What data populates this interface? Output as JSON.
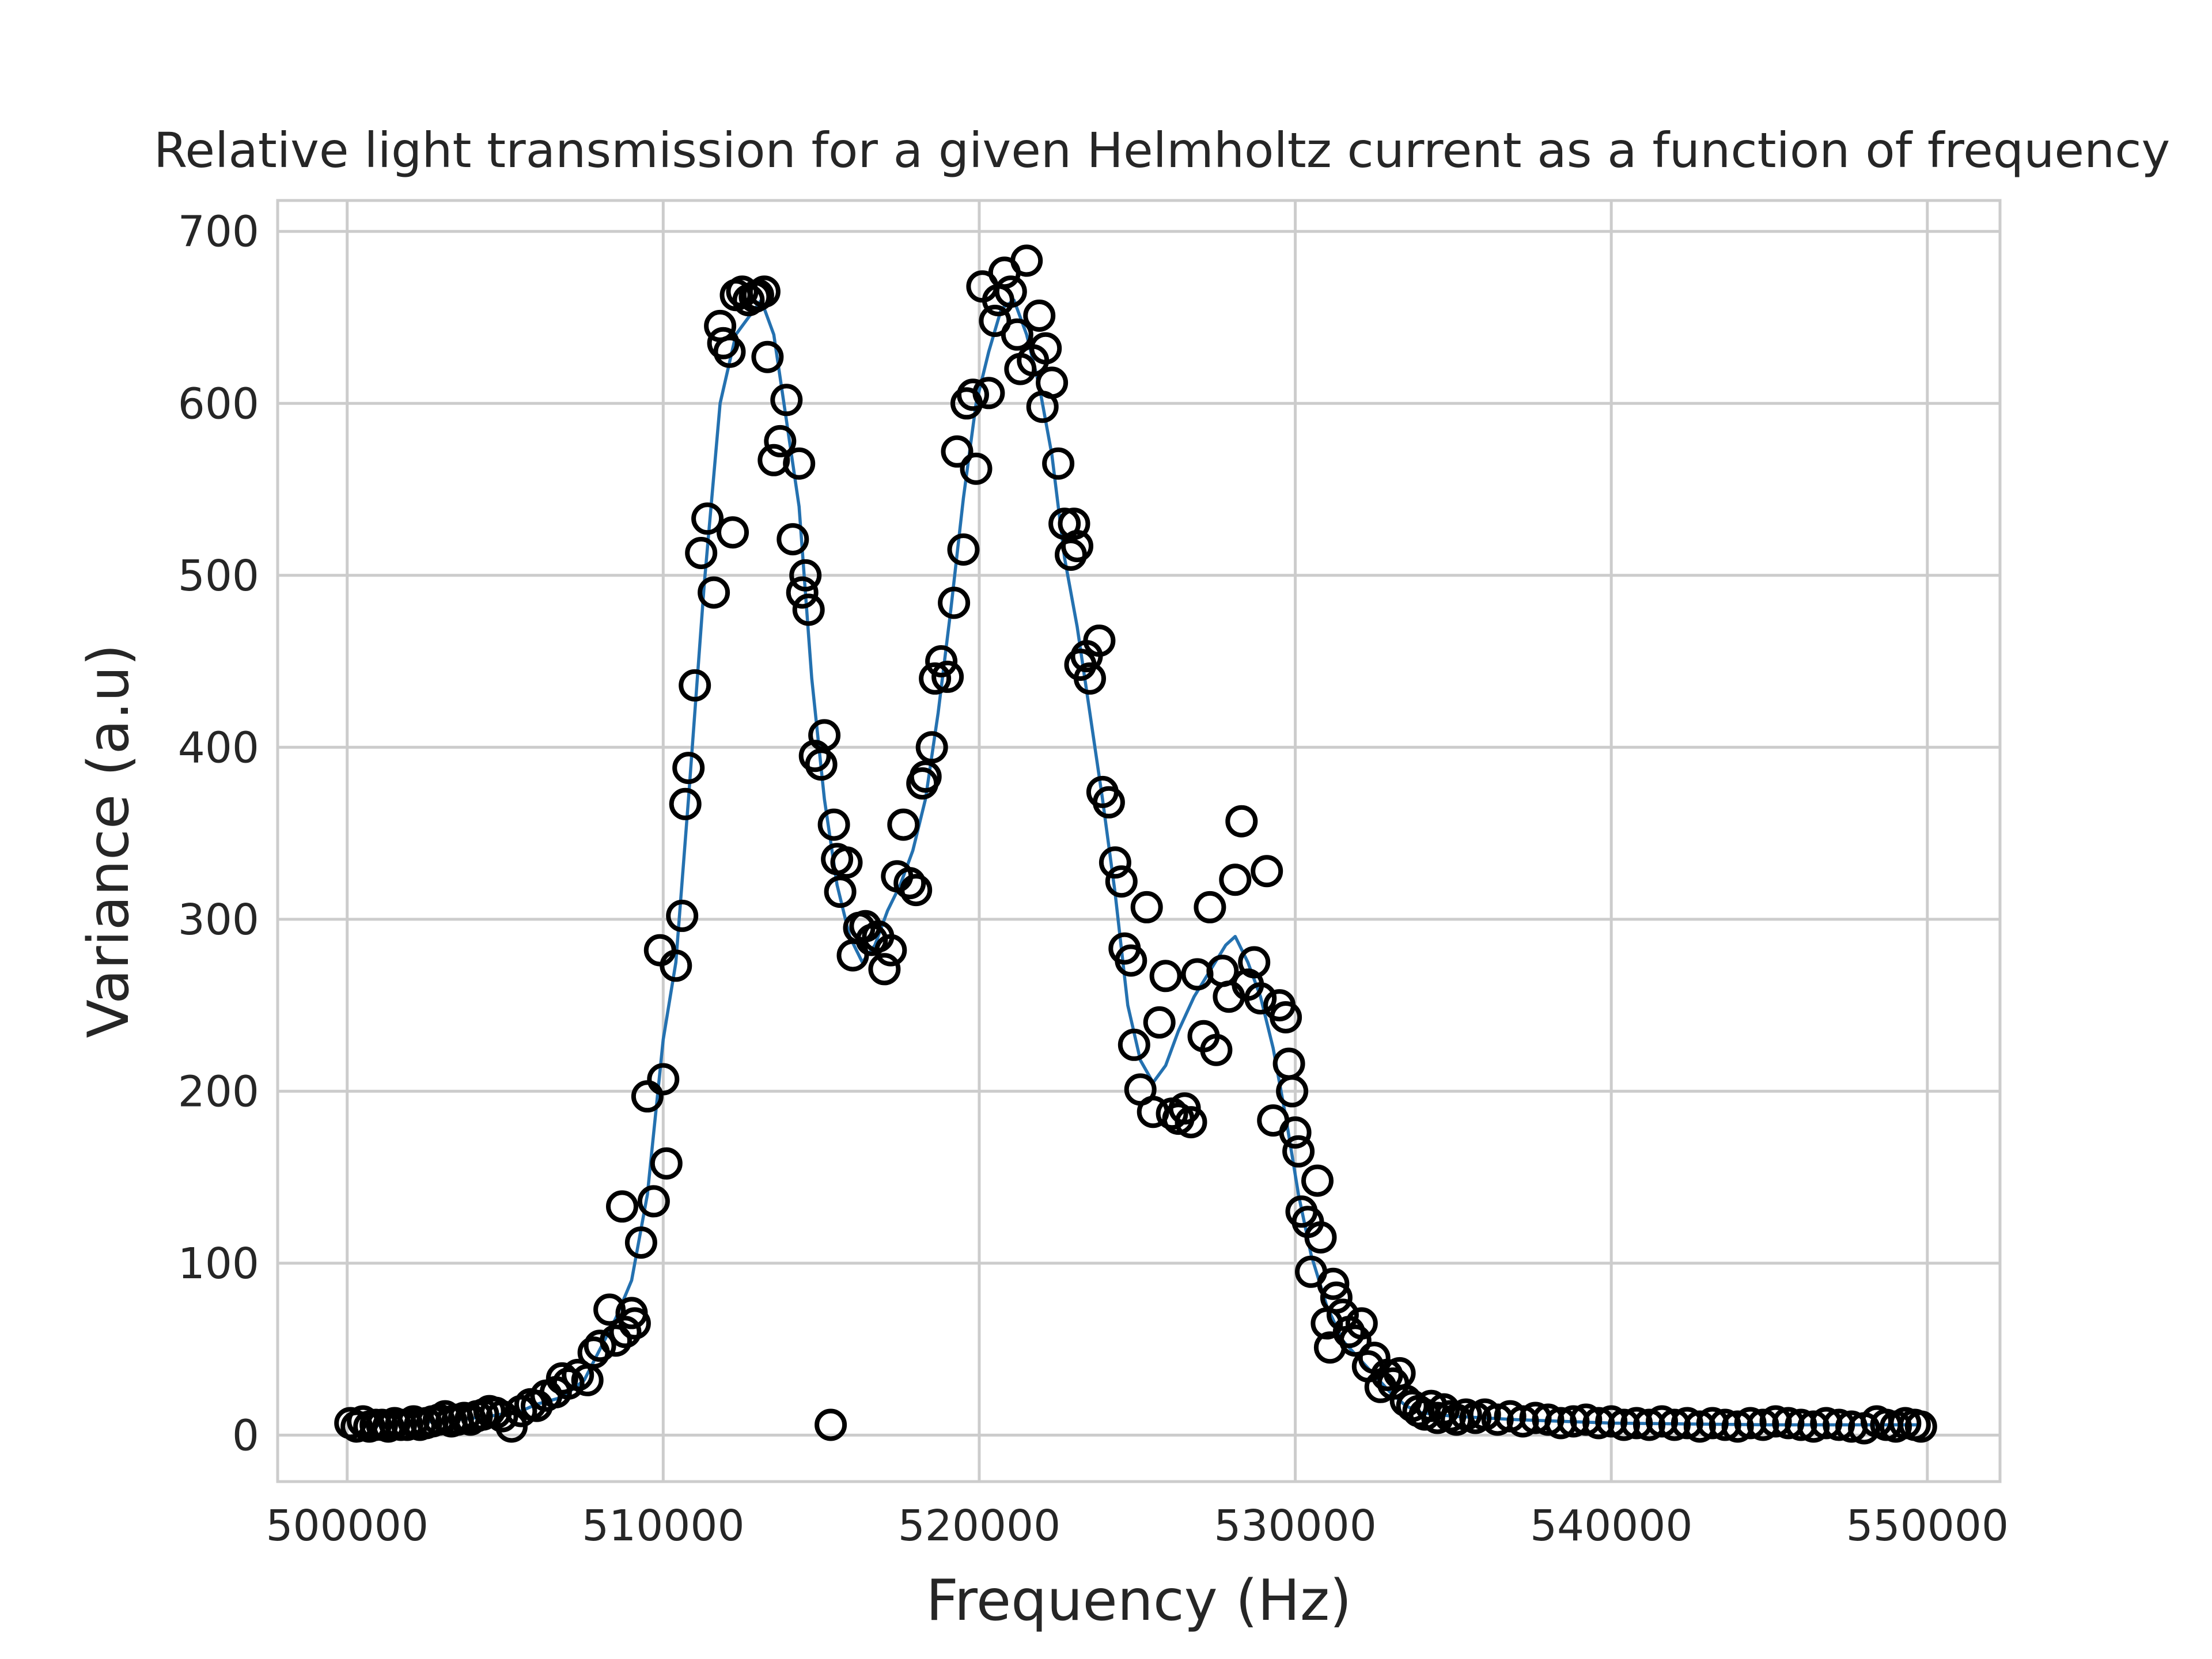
{
  "chart_data": {
    "type": "scatter",
    "title": "Relative light transmission for a given Helmholtz current as a function of frequency",
    "xlabel": "Frequency (Hz)",
    "ylabel": "Variance (a.u)",
    "xlim": [
      497800,
      552300
    ],
    "ylim": [
      -27,
      718
    ],
    "xticks": [
      500000,
      510000,
      520000,
      530000,
      540000,
      550000
    ],
    "yticks": [
      0,
      100,
      200,
      300,
      400,
      500,
      600,
      700
    ],
    "grid": true,
    "legend": "none",
    "colors": {
      "markers": "#000000",
      "fit_line": "#2471b0",
      "grid": "#cccccc",
      "spine": "#cccccc"
    },
    "series": [
      {
        "kind": "markers",
        "marker": "open-circle",
        "points": [
          [
            500100,
            7
          ],
          [
            500300,
            5
          ],
          [
            500500,
            8
          ],
          [
            500700,
            5
          ],
          [
            500900,
            6
          ],
          [
            501100,
            6
          ],
          [
            501300,
            5
          ],
          [
            501500,
            7
          ],
          [
            501700,
            6
          ],
          [
            501900,
            6
          ],
          [
            502100,
            8
          ],
          [
            502300,
            6
          ],
          [
            502500,
            7
          ],
          [
            502700,
            8
          ],
          [
            502900,
            9
          ],
          [
            503100,
            11
          ],
          [
            503300,
            8
          ],
          [
            503500,
            9
          ],
          [
            503700,
            10
          ],
          [
            503900,
            9
          ],
          [
            504100,
            11
          ],
          [
            504300,
            12
          ],
          [
            504500,
            14
          ],
          [
            504700,
            13
          ],
          [
            504900,
            11
          ],
          [
            505200,
            5
          ],
          [
            505500,
            14
          ],
          [
            505800,
            18
          ],
          [
            506000,
            17
          ],
          [
            506300,
            23
          ],
          [
            506600,
            25
          ],
          [
            506800,
            33
          ],
          [
            507000,
            30
          ],
          [
            507300,
            35
          ],
          [
            507600,
            32
          ],
          [
            507800,
            48
          ],
          [
            508000,
            52
          ],
          [
            508300,
            73
          ],
          [
            508500,
            55
          ],
          [
            508700,
            133
          ],
          [
            508800,
            60
          ],
          [
            509000,
            71
          ],
          [
            509100,
            65
          ],
          [
            509300,
            112
          ],
          [
            509500,
            197
          ],
          [
            509700,
            136
          ],
          [
            509900,
            282
          ],
          [
            510000,
            207
          ],
          [
            510100,
            158
          ],
          [
            510400,
            273
          ],
          [
            510600,
            302
          ],
          [
            510700,
            367
          ],
          [
            510800,
            388
          ],
          [
            511000,
            436
          ],
          [
            511200,
            513
          ],
          [
            511400,
            533
          ],
          [
            511600,
            490
          ],
          [
            511800,
            645
          ],
          [
            511900,
            635
          ],
          [
            512100,
            630
          ],
          [
            512200,
            525
          ],
          [
            512300,
            663
          ],
          [
            512500,
            665
          ],
          [
            512700,
            660
          ],
          [
            512900,
            662
          ],
          [
            513000,
            663
          ],
          [
            513200,
            665
          ],
          [
            513300,
            627
          ],
          [
            513500,
            567
          ],
          [
            513700,
            578
          ],
          [
            513900,
            602
          ],
          [
            514100,
            521
          ],
          [
            514300,
            565
          ],
          [
            514400,
            490
          ],
          [
            514500,
            500
          ],
          [
            514600,
            480
          ],
          [
            514800,
            395
          ],
          [
            515000,
            390
          ],
          [
            515100,
            407
          ],
          [
            515300,
            6
          ],
          [
            515400,
            355
          ],
          [
            515500,
            335
          ],
          [
            515600,
            316
          ],
          [
            515800,
            333
          ],
          [
            516000,
            279
          ],
          [
            516200,
            295
          ],
          [
            516400,
            296
          ],
          [
            516600,
            288
          ],
          [
            516800,
            290
          ],
          [
            517000,
            271
          ],
          [
            517200,
            282
          ],
          [
            517400,
            325
          ],
          [
            517600,
            355
          ],
          [
            517800,
            321
          ],
          [
            518000,
            317
          ],
          [
            518200,
            379
          ],
          [
            518300,
            383
          ],
          [
            518500,
            400
          ],
          [
            518600,
            440
          ],
          [
            518800,
            450
          ],
          [
            519000,
            441
          ],
          [
            519200,
            484
          ],
          [
            519300,
            572
          ],
          [
            519500,
            515
          ],
          [
            519600,
            600
          ],
          [
            519800,
            605
          ],
          [
            519900,
            562
          ],
          [
            520100,
            668
          ],
          [
            520300,
            606
          ],
          [
            520500,
            648
          ],
          [
            520600,
            660
          ],
          [
            520800,
            676
          ],
          [
            521000,
            665
          ],
          [
            521200,
            640
          ],
          [
            521300,
            620
          ],
          [
            521500,
            683
          ],
          [
            521700,
            625
          ],
          [
            521900,
            651
          ],
          [
            522000,
            598
          ],
          [
            522100,
            632
          ],
          [
            522300,
            612
          ],
          [
            522500,
            565
          ],
          [
            522700,
            530
          ],
          [
            522900,
            512
          ],
          [
            523000,
            530
          ],
          [
            523100,
            517
          ],
          [
            523200,
            448
          ],
          [
            523400,
            453
          ],
          [
            523500,
            440
          ],
          [
            523800,
            462
          ],
          [
            523900,
            374
          ],
          [
            524100,
            368
          ],
          [
            524300,
            333
          ],
          [
            524500,
            322
          ],
          [
            524600,
            283
          ],
          [
            524800,
            276
          ],
          [
            524900,
            227
          ],
          [
            525100,
            201
          ],
          [
            525300,
            307
          ],
          [
            525500,
            188
          ],
          [
            525700,
            240
          ],
          [
            525900,
            267
          ],
          [
            526100,
            187
          ],
          [
            526300,
            184
          ],
          [
            526500,
            190
          ],
          [
            526700,
            182
          ],
          [
            526900,
            268
          ],
          [
            527100,
            232
          ],
          [
            527300,
            307
          ],
          [
            527500,
            224
          ],
          [
            527700,
            270
          ],
          [
            527900,
            255
          ],
          [
            528100,
            323
          ],
          [
            528300,
            357
          ],
          [
            528500,
            262
          ],
          [
            528700,
            275
          ],
          [
            528900,
            254
          ],
          [
            529100,
            328
          ],
          [
            529300,
            183
          ],
          [
            529500,
            250
          ],
          [
            529700,
            243
          ],
          [
            529800,
            216
          ],
          [
            529900,
            200
          ],
          [
            530000,
            176
          ],
          [
            530100,
            165
          ],
          [
            530200,
            130
          ],
          [
            530400,
            124
          ],
          [
            530500,
            95
          ],
          [
            530700,
            148
          ],
          [
            530800,
            115
          ],
          [
            531000,
            65
          ],
          [
            531100,
            51
          ],
          [
            531200,
            88
          ],
          [
            531300,
            80
          ],
          [
            531500,
            70
          ],
          [
            531700,
            60
          ],
          [
            531900,
            55
          ],
          [
            532100,
            65
          ],
          [
            532300,
            40
          ],
          [
            532500,
            45
          ],
          [
            532700,
            28
          ],
          [
            532900,
            35
          ],
          [
            533100,
            30
          ],
          [
            533300,
            36
          ],
          [
            533500,
            20
          ],
          [
            533700,
            17
          ],
          [
            533900,
            14
          ],
          [
            534100,
            12
          ],
          [
            534300,
            17
          ],
          [
            534500,
            10
          ],
          [
            534700,
            15
          ],
          [
            534900,
            11
          ],
          [
            535100,
            9
          ],
          [
            535400,
            12
          ],
          [
            535700,
            10
          ],
          [
            536000,
            12
          ],
          [
            536400,
            9
          ],
          [
            536800,
            11
          ],
          [
            537200,
            8
          ],
          [
            537600,
            10
          ],
          [
            538000,
            9
          ],
          [
            538400,
            7
          ],
          [
            538800,
            8
          ],
          [
            539200,
            9
          ],
          [
            539600,
            7
          ],
          [
            540000,
            8
          ],
          [
            540400,
            6
          ],
          [
            540800,
            7
          ],
          [
            541200,
            6
          ],
          [
            541600,
            8
          ],
          [
            542000,
            6
          ],
          [
            542400,
            7
          ],
          [
            542800,
            5
          ],
          [
            543200,
            7
          ],
          [
            543600,
            6
          ],
          [
            544000,
            5
          ],
          [
            544400,
            7
          ],
          [
            544800,
            6
          ],
          [
            545200,
            8
          ],
          [
            545600,
            7
          ],
          [
            546000,
            6
          ],
          [
            546400,
            5
          ],
          [
            546800,
            7
          ],
          [
            547200,
            6
          ],
          [
            547600,
            5
          ],
          [
            548000,
            4
          ],
          [
            548400,
            8
          ],
          [
            548700,
            6
          ],
          [
            549000,
            5
          ],
          [
            549300,
            7
          ],
          [
            549600,
            6
          ],
          [
            549800,
            5
          ]
        ]
      },
      {
        "kind": "line",
        "points": [
          [
            500400,
            5
          ],
          [
            502000,
            7
          ],
          [
            503500,
            9
          ],
          [
            504500,
            11
          ],
          [
            505500,
            14
          ],
          [
            506000,
            18
          ],
          [
            506800,
            22
          ],
          [
            507500,
            32
          ],
          [
            508000,
            50
          ],
          [
            508500,
            68
          ],
          [
            509000,
            90
          ],
          [
            509500,
            140
          ],
          [
            510000,
            230
          ],
          [
            510400,
            275
          ],
          [
            510800,
            370
          ],
          [
            511300,
            495
          ],
          [
            511800,
            600
          ],
          [
            512300,
            640
          ],
          [
            512700,
            650
          ],
          [
            513100,
            660
          ],
          [
            513500,
            640
          ],
          [
            513900,
            590
          ],
          [
            514300,
            540
          ],
          [
            514700,
            440
          ],
          [
            515100,
            370
          ],
          [
            515500,
            320
          ],
          [
            515900,
            290
          ],
          [
            516300,
            275
          ],
          [
            516700,
            285
          ],
          [
            517100,
            305
          ],
          [
            517500,
            320
          ],
          [
            517900,
            340
          ],
          [
            518300,
            370
          ],
          [
            518700,
            420
          ],
          [
            519100,
            480
          ],
          [
            519500,
            545
          ],
          [
            519900,
            600
          ],
          [
            520300,
            630
          ],
          [
            520700,
            655
          ],
          [
            521100,
            660
          ],
          [
            521500,
            640
          ],
          [
            521900,
            610
          ],
          [
            522300,
            570
          ],
          [
            522700,
            510
          ],
          [
            523100,
            470
          ],
          [
            523500,
            420
          ],
          [
            523900,
            370
          ],
          [
            524300,
            315
          ],
          [
            524700,
            250
          ],
          [
            525100,
            218
          ],
          [
            525500,
            205
          ],
          [
            525900,
            215
          ],
          [
            526300,
            235
          ],
          [
            526800,
            255
          ],
          [
            527300,
            270
          ],
          [
            527800,
            285
          ],
          [
            528100,
            290
          ],
          [
            528500,
            275
          ],
          [
            528900,
            255
          ],
          [
            529300,
            225
          ],
          [
            529700,
            185
          ],
          [
            530100,
            140
          ],
          [
            530500,
            105
          ],
          [
            531000,
            75
          ],
          [
            531500,
            55
          ],
          [
            532000,
            45
          ],
          [
            532500,
            35
          ],
          [
            533000,
            25
          ],
          [
            533500,
            17
          ],
          [
            534000,
            13
          ],
          [
            535000,
            11
          ],
          [
            537000,
            9
          ],
          [
            540000,
            7
          ],
          [
            545000,
            6
          ],
          [
            549800,
            6
          ]
        ]
      }
    ]
  }
}
